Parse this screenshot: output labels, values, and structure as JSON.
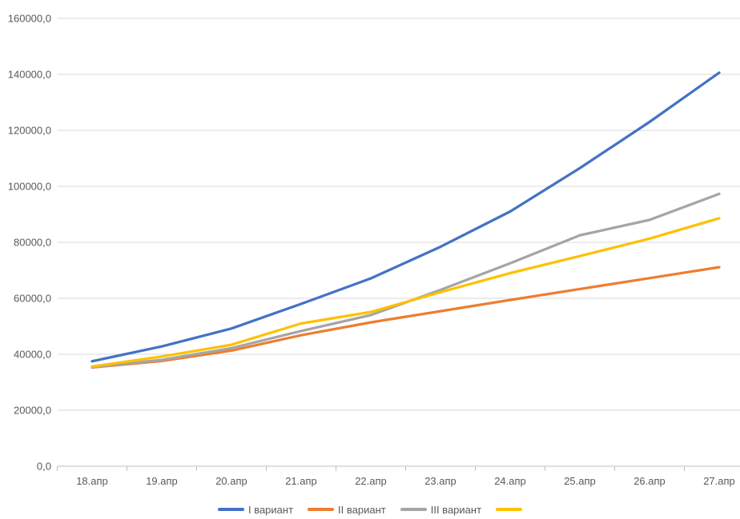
{
  "chart_data": {
    "type": "line",
    "title": "",
    "categories": [
      "18.апр",
      "19.апр",
      "20.апр",
      "21.апр",
      "22.апр",
      "23.апр",
      "24.апр",
      "25.апр",
      "26.апр",
      "27.апр"
    ],
    "series": [
      {
        "name": "I вариант",
        "color": "#4472C4",
        "values": [
          37500,
          42800,
          49200,
          58000,
          67100,
          78400,
          91000,
          106500,
          123000,
          140600
        ]
      },
      {
        "name": "II вариант",
        "color": "#ED7D31",
        "values": [
          35300,
          37600,
          41300,
          46800,
          51400,
          55400,
          59400,
          63300,
          67200,
          71100
        ]
      },
      {
        "name": "III вариант",
        "color": "#A5A5A5",
        "values": [
          35400,
          38000,
          42200,
          48300,
          54000,
          63000,
          72500,
          82500,
          88000,
          97300
        ]
      },
      {
        "name": "",
        "color": "#FFC000",
        "values": [
          35600,
          39200,
          43400,
          51000,
          55100,
          62200,
          69000,
          75100,
          81300,
          88600
        ]
      }
    ],
    "y_axis": {
      "min": 0,
      "max": 160000,
      "step": 20000,
      "tick_labels": [
        "0,0",
        "20000,0",
        "40000,0",
        "60000,0",
        "80000,0",
        "100000,0",
        "120000,0",
        "140000,0",
        "160000,0"
      ]
    },
    "x_axis": {
      "tick_labels": [
        "18.апр",
        "19.апр",
        "20.апр",
        "21.апр",
        "22.апр",
        "23.апр",
        "24.апр",
        "25.апр",
        "26.апр",
        "27.апр"
      ]
    },
    "legend": {
      "position": "bottom",
      "entries": [
        "I вариант",
        "II вариант",
        "III вариант",
        ""
      ]
    },
    "grid": true,
    "xlabel": "",
    "ylabel": ""
  },
  "colors": {
    "axis_text": "#595959",
    "gridline": "#D9D9D9",
    "tick_mark": "#BFBFBF",
    "background": "#FFFFFF"
  }
}
